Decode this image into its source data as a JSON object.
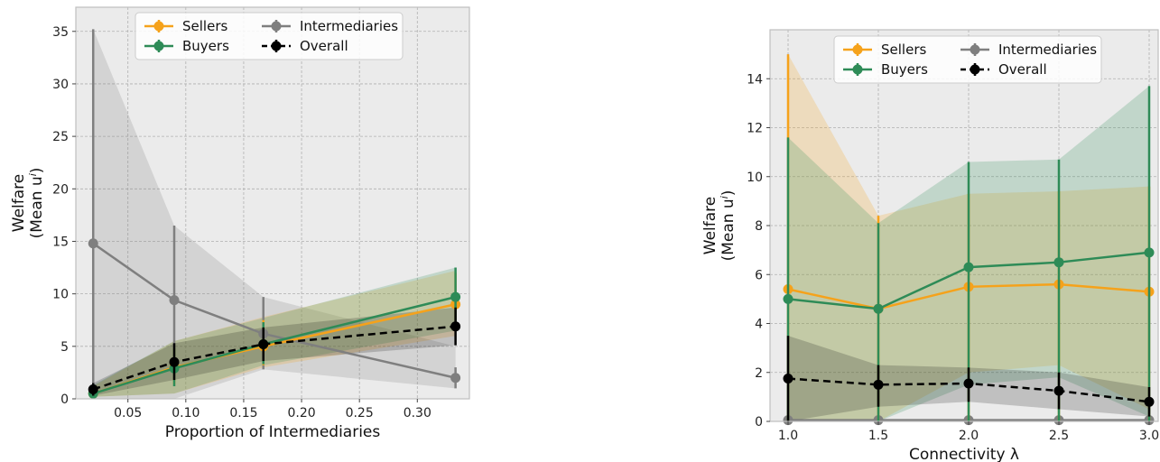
{
  "chart_data": [
    {
      "type": "line",
      "xlabel": "Proportion of Intermediaries",
      "ylabel_line1": "Welfare",
      "ylabel_line2": "(Mean u",
      "ylabel_sup": "i",
      "ylabel_close": ")",
      "xlim": [
        0.005,
        0.345
      ],
      "ylim": [
        0,
        37.3
      ],
      "xticks": [
        0.05,
        0.1,
        0.15,
        0.2,
        0.25,
        0.3
      ],
      "xtick_labels": [
        "0.05",
        "0.10",
        "0.15",
        "0.20",
        "0.25",
        "0.30"
      ],
      "yticks": [
        0,
        5,
        10,
        15,
        20,
        25,
        30,
        35
      ],
      "ytick_labels": [
        "0",
        "5",
        "10",
        "15",
        "20",
        "25",
        "30",
        "35"
      ],
      "grid": true,
      "legend_position": "top-center",
      "x": [
        0.02,
        0.09,
        0.167,
        0.333
      ],
      "series": [
        {
          "name": "Sellers",
          "color": "#F5A21B",
          "dashed": false,
          "values": [
            0.5,
            3.0,
            5.0,
            9.0
          ],
          "err_low": [
            0.2,
            1.4,
            3.2,
            6.5
          ],
          "err_high": [
            1.0,
            4.8,
            7.5,
            12.0
          ],
          "band_low": [
            0.2,
            0.5,
            3.0,
            6.0
          ],
          "band_high": [
            1.2,
            5.5,
            7.8,
            12.2
          ]
        },
        {
          "name": "Buyers",
          "color": "#2E8B57",
          "dashed": false,
          "values": [
            0.5,
            2.9,
            5.2,
            9.7
          ],
          "err_low": [
            0.2,
            1.2,
            3.3,
            7.0
          ],
          "err_high": [
            1.0,
            4.8,
            7.3,
            12.5
          ],
          "band_low": [
            0.2,
            0.5,
            3.2,
            6.5
          ],
          "band_high": [
            1.3,
            5.5,
            7.7,
            12.5
          ]
        },
        {
          "name": "Intermediaries",
          "color": "#7F7F7F",
          "dashed": false,
          "values": [
            14.8,
            9.4,
            6.2,
            2.0
          ],
          "err_low": [
            0.0,
            2.0,
            2.8,
            1.0
          ],
          "err_high": [
            35.2,
            16.5,
            9.7,
            3.0
          ],
          "band_low": [
            0.0,
            0.0,
            2.8,
            1.0
          ],
          "band_high": [
            35.2,
            16.5,
            9.7,
            5.0
          ]
        },
        {
          "name": "Overall",
          "color": "#000000",
          "dashed": true,
          "values": [
            0.9,
            3.5,
            5.2,
            6.9
          ],
          "err_low": [
            0.3,
            1.8,
            3.6,
            5.1
          ],
          "err_high": [
            1.5,
            5.3,
            6.8,
            8.7
          ],
          "band_low": [
            0.3,
            1.8,
            3.6,
            5.1
          ],
          "band_high": [
            1.5,
            5.3,
            6.8,
            8.7
          ]
        }
      ],
      "legend": {
        "col1": [
          "Sellers",
          "Buyers"
        ],
        "col2": [
          "Intermediaries",
          "Overall"
        ]
      }
    },
    {
      "type": "line",
      "xlabel": "Connectivity λ",
      "ylabel_line1": "Welfare",
      "ylabel_line2": "(Mean u",
      "ylabel_sup": "i",
      "ylabel_close": ")",
      "xlim": [
        0.9,
        3.05
      ],
      "ylim": [
        0,
        16.0
      ],
      "xticks": [
        1.0,
        1.5,
        2.0,
        2.5,
        3.0
      ],
      "xtick_labels": [
        "1.0",
        "1.5",
        "2.0",
        "2.5",
        "3.0"
      ],
      "yticks": [
        0,
        2,
        4,
        6,
        8,
        10,
        12,
        14
      ],
      "ytick_labels": [
        "0",
        "2",
        "4",
        "6",
        "8",
        "10",
        "12",
        "14"
      ],
      "grid": true,
      "legend_position": "top-center",
      "x": [
        1.0,
        1.5,
        2.0,
        2.5,
        3.0
      ],
      "series": [
        {
          "name": "Sellers",
          "color": "#F5A21B",
          "dashed": false,
          "values": [
            5.4,
            4.6,
            5.5,
            5.6,
            5.3
          ],
          "err_low": [
            0.0,
            0.0,
            0.0,
            0.0,
            0.0
          ],
          "err_high": [
            15.0,
            8.4,
            9.3,
            9.4,
            9.6
          ],
          "band_low": [
            0.0,
            0.0,
            2.0,
            2.3,
            0.5
          ],
          "band_high": [
            15.0,
            8.4,
            9.3,
            9.4,
            9.6
          ]
        },
        {
          "name": "Buyers",
          "color": "#2E8B57",
          "dashed": false,
          "values": [
            5.0,
            4.6,
            6.3,
            6.5,
            6.9
          ],
          "err_low": [
            0.0,
            0.0,
            0.0,
            0.0,
            0.0
          ],
          "err_high": [
            11.6,
            8.1,
            10.6,
            10.7,
            13.7
          ],
          "band_low": [
            0.0,
            0.0,
            1.5,
            1.8,
            0.2
          ],
          "band_high": [
            11.6,
            8.1,
            10.6,
            10.7,
            13.7
          ]
        },
        {
          "name": "Intermediaries",
          "color": "#7F7F7F",
          "dashed": false,
          "values": [
            0.05,
            0.05,
            0.05,
            0.05,
            0.05
          ],
          "err_low": [
            0.0,
            0.0,
            0.0,
            0.0,
            0.0
          ],
          "err_high": [
            0.1,
            0.1,
            0.1,
            0.1,
            0.1
          ],
          "band_low": [
            0.0,
            0.0,
            0.0,
            0.0,
            0.0
          ],
          "band_high": [
            0.1,
            0.1,
            0.1,
            0.1,
            0.1
          ]
        },
        {
          "name": "Overall",
          "color": "#000000",
          "dashed": true,
          "values": [
            1.75,
            1.5,
            1.55,
            1.25,
            0.8
          ],
          "err_low": [
            0.0,
            0.6,
            0.8,
            0.5,
            0.2
          ],
          "err_high": [
            3.5,
            2.3,
            2.2,
            2.0,
            1.4
          ],
          "band_low": [
            0.0,
            0.6,
            0.8,
            0.5,
            0.2
          ],
          "band_high": [
            3.5,
            2.3,
            2.2,
            2.0,
            1.4
          ]
        }
      ],
      "legend": {
        "col1": [
          "Sellers",
          "Buyers"
        ],
        "col2": [
          "Intermediaries",
          "Overall"
        ]
      }
    }
  ]
}
